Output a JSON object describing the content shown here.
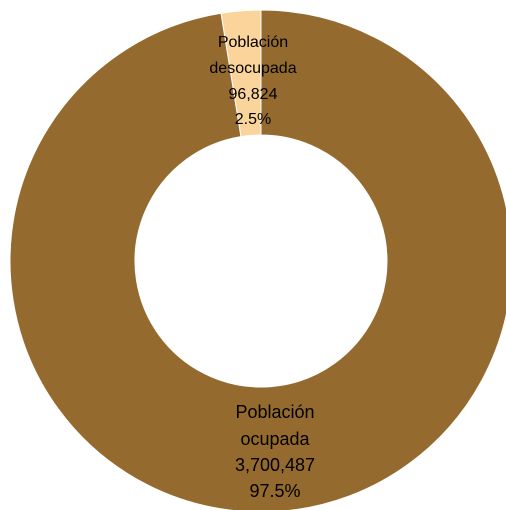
{
  "chart_data": {
    "type": "pie",
    "donut": true,
    "slices": [
      {
        "name_lines": [
          "Población",
          "ocupada"
        ],
        "value": 3700487,
        "value_label": "3,700,487",
        "percent_label": "97.5%",
        "color": "#946A2F"
      },
      {
        "name_lines": [
          "Población",
          "desocupada"
        ],
        "value": 96824,
        "value_label": "96,824",
        "percent_label": "2.5%",
        "color": "#FAD49A"
      }
    ]
  }
}
